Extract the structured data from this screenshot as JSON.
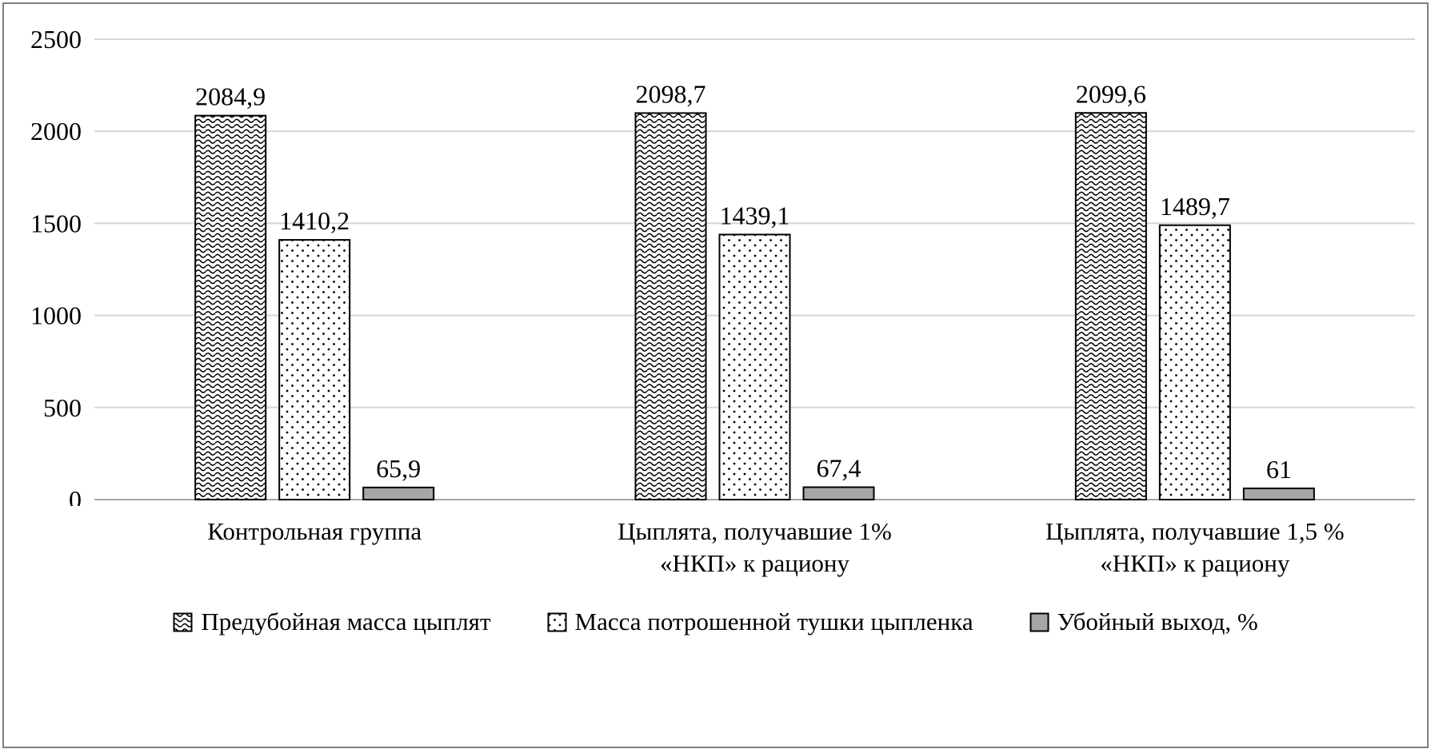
{
  "chart_data": {
    "type": "bar",
    "title": "",
    "xlabel": "",
    "ylabel": "",
    "ylim": [
      0,
      2500
    ],
    "y_ticks": [
      0,
      500,
      1000,
      1500,
      2000,
      2500
    ],
    "grid": true,
    "legend_position": "bottom",
    "categories": [
      "Контрольная группа",
      "Цыплята, получавшие 1% «НКП» к рациону",
      "Цыплята, получавшие 1,5 % «НКП» к рациону"
    ],
    "category_lines": [
      [
        "Контрольная группа"
      ],
      [
        "Цыплята, получавшие 1%",
        "«НКП» к рациону"
      ],
      [
        "Цыплята, получавшие 1,5 %",
        "«НКП» к рациону"
      ]
    ],
    "series": [
      {
        "name": "Предубойная масса цыплят",
        "pattern": "wave",
        "values": [
          2084.9,
          2098.7,
          2099.6
        ],
        "labels": [
          "2084,9",
          "2098,7",
          "2099,6"
        ]
      },
      {
        "name": "Масса потрошенной тушки цыпленка",
        "pattern": "dots",
        "values": [
          1410.2,
          1439.1,
          1489.7
        ],
        "labels": [
          "1410,2",
          "1439,1",
          "1489,7"
        ]
      },
      {
        "name": "Убойный выход, %",
        "pattern": "gray",
        "values": [
          65.9,
          67.4,
          61
        ],
        "labels": [
          "65,9",
          "67,4",
          "61"
        ]
      }
    ],
    "colors": {
      "grid": "#d6d6d6",
      "axis": "#a6a6a6",
      "bar_stroke": "#000000",
      "gray_fill": "#a6a6a6",
      "pattern_ink": "#000000",
      "text": "#000000",
      "frame": "#7f7f7f"
    }
  }
}
